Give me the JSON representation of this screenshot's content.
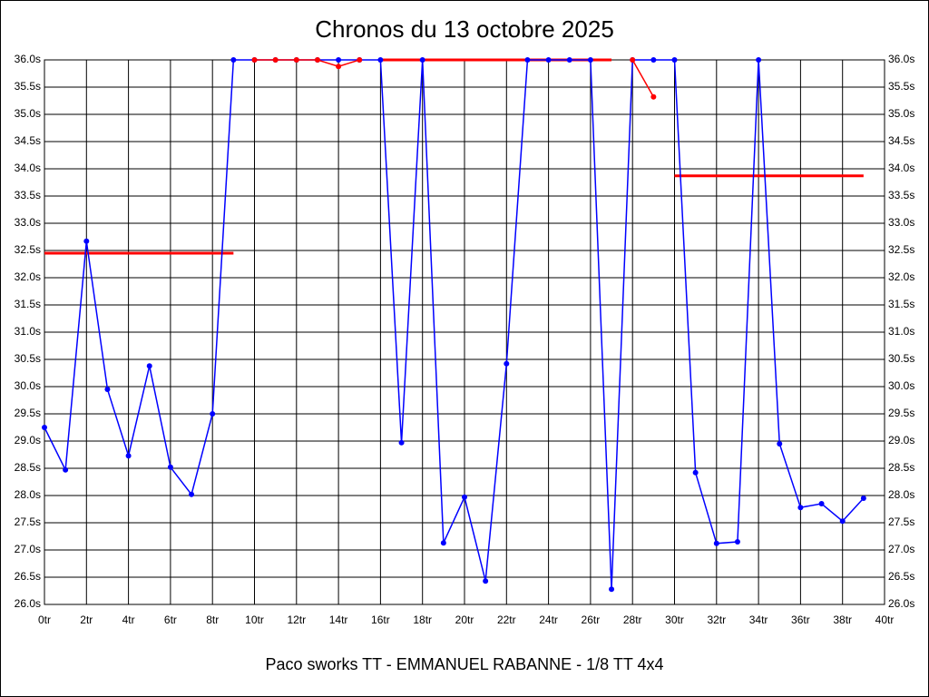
{
  "chart_data": {
    "type": "line",
    "title": "Chronos du 13 octobre 2025",
    "xlabel": "Paco sworks TT - EMMANUEL RABANNE - 1/8 TT 4x4",
    "x": [
      0,
      1,
      2,
      3,
      4,
      5,
      6,
      7,
      8,
      9,
      10,
      11,
      12,
      13,
      14,
      15,
      16,
      17,
      18,
      19,
      20,
      21,
      22,
      23,
      24,
      25,
      26,
      27,
      28,
      29,
      30,
      31,
      32,
      33,
      34,
      35,
      36,
      37,
      38,
      39
    ],
    "series": [
      {
        "color": "#ff0000",
        "markers": false,
        "values": [
          32.45,
          32.45,
          32.45,
          32.45,
          32.45,
          32.45,
          32.45,
          32.45,
          32.45,
          32.45,
          null,
          null,
          null,
          null,
          null,
          null,
          36,
          36,
          36,
          36,
          36,
          36,
          36,
          36,
          36,
          36,
          36,
          36,
          null,
          null,
          33.87,
          33.87,
          33.87,
          33.87,
          33.87,
          33.87,
          33.87,
          33.87,
          33.87,
          33.87
        ]
      },
      {
        "color": "#0000ff",
        "markers": true,
        "values": [
          29.25,
          28.47,
          32.67,
          29.95,
          28.73,
          30.38,
          28.52,
          28.02,
          29.5,
          36,
          36,
          36,
          36,
          36,
          36,
          36,
          36,
          28.97,
          36,
          27.13,
          27.97,
          26.43,
          30.42,
          36,
          36,
          36,
          36,
          26.28,
          36,
          36,
          36,
          28.42,
          27.12,
          27.15,
          36,
          28.95,
          27.78,
          27.85,
          27.53,
          27.95
        ]
      },
      {
        "color": "#ff0000",
        "markers": true,
        "values": [
          null,
          null,
          null,
          null,
          null,
          null,
          null,
          null,
          null,
          null,
          36,
          36,
          36,
          36,
          35.88,
          36,
          null,
          null,
          null,
          null,
          null,
          null,
          null,
          null,
          null,
          null,
          null,
          null,
          36,
          35.32,
          null,
          null,
          null,
          null,
          null,
          null,
          null,
          null,
          null,
          null
        ]
      }
    ],
    "xlim": [
      0,
      40
    ],
    "xticks": [
      {
        "value": 0,
        "label": "0tr"
      },
      {
        "value": 2,
        "label": "2tr"
      },
      {
        "value": 4,
        "label": "4tr"
      },
      {
        "value": 6,
        "label": "6tr"
      },
      {
        "value": 8,
        "label": "8tr"
      },
      {
        "value": 10,
        "label": "10tr"
      },
      {
        "value": 12,
        "label": "12tr"
      },
      {
        "value": 14,
        "label": "14tr"
      },
      {
        "value": 16,
        "label": "16tr"
      },
      {
        "value": 18,
        "label": "18tr"
      },
      {
        "value": 20,
        "label": "20tr"
      },
      {
        "value": 22,
        "label": "22tr"
      },
      {
        "value": 24,
        "label": "24tr"
      },
      {
        "value": 26,
        "label": "26tr"
      },
      {
        "value": 28,
        "label": "28tr"
      },
      {
        "value": 30,
        "label": "30tr"
      },
      {
        "value": 32,
        "label": "32tr"
      },
      {
        "value": 34,
        "label": "34tr"
      },
      {
        "value": 36,
        "label": "36tr"
      },
      {
        "value": 38,
        "label": "38tr"
      },
      {
        "value": 40,
        "label": "40tr"
      }
    ],
    "ylim": [
      26,
      36
    ],
    "yticks": [
      {
        "value": 26,
        "label": "26.0s"
      },
      {
        "value": 26.5,
        "label": "26.5s"
      },
      {
        "value": 27,
        "label": "27.0s"
      },
      {
        "value": 27.5,
        "label": "27.5s"
      },
      {
        "value": 28,
        "label": "28.0s"
      },
      {
        "value": 28.5,
        "label": "28.5s"
      },
      {
        "value": 29,
        "label": "29.0s"
      },
      {
        "value": 29.5,
        "label": "29.5s"
      },
      {
        "value": 30,
        "label": "30.0s"
      },
      {
        "value": 30.5,
        "label": "30.5s"
      },
      {
        "value": 31,
        "label": "31.0s"
      },
      {
        "value": 31.5,
        "label": "31.5s"
      },
      {
        "value": 32,
        "label": "32.0s"
      },
      {
        "value": 32.5,
        "label": "32.5s"
      },
      {
        "value": 33,
        "label": "33.0s"
      },
      {
        "value": 33.5,
        "label": "33.5s"
      },
      {
        "value": 34,
        "label": "34.0s"
      },
      {
        "value": 34.5,
        "label": "34.5s"
      },
      {
        "value": 35,
        "label": "35.0s"
      },
      {
        "value": 35.5,
        "label": "35.5s"
      },
      {
        "value": 36,
        "label": "36.0s"
      }
    ],
    "grid": true
  }
}
